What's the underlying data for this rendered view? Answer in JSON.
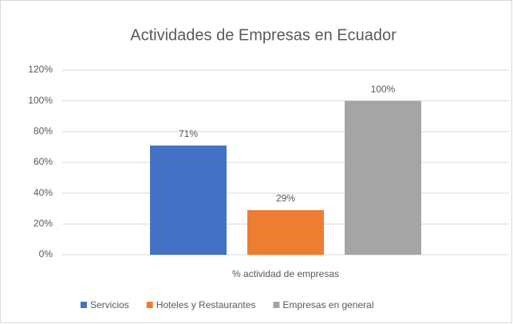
{
  "chart_data": {
    "type": "bar",
    "title": "Actividades de Empresas en Ecuador",
    "categories": [
      "% actividad de empresas"
    ],
    "series": [
      {
        "name": "Servicios",
        "color": "#4472c4",
        "values": [
          71
        ],
        "value_labels": [
          "71%"
        ]
      },
      {
        "name": "Hoteles y Restaurantes",
        "color": "#ed7d31",
        "values": [
          29
        ],
        "value_labels": [
          "29%"
        ]
      },
      {
        "name": "Empresas en general",
        "color": "#a5a5a5",
        "values": [
          100
        ],
        "value_labels": [
          "100%"
        ]
      }
    ],
    "ylim": [
      0,
      120
    ],
    "yticks": [
      {
        "value": 0,
        "label": "0%"
      },
      {
        "value": 20,
        "label": "20%"
      },
      {
        "value": 40,
        "label": "40%"
      },
      {
        "value": 60,
        "label": "60%"
      },
      {
        "value": 80,
        "label": "80%"
      },
      {
        "value": 100,
        "label": "100%"
      },
      {
        "value": 120,
        "label": "120%"
      }
    ],
    "grid": true,
    "legend": "bottom"
  }
}
